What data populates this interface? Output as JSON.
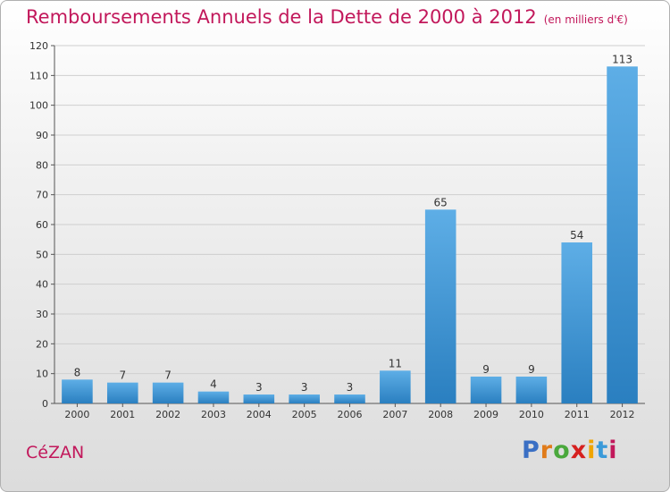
{
  "chart_data": {
    "type": "bar",
    "title": "Remboursements Annuels de la Dette de 2000 à 2012",
    "unit": "(en milliers d'€)",
    "categories": [
      "2000",
      "2001",
      "2002",
      "2003",
      "2004",
      "2005",
      "2006",
      "2007",
      "2008",
      "2009",
      "2010",
      "2011",
      "2012"
    ],
    "values": [
      8,
      7,
      7,
      4,
      3,
      3,
      3,
      11,
      65,
      9,
      9,
      54,
      113
    ],
    "ylim": [
      0,
      120
    ],
    "yticks": [
      0,
      10,
      20,
      30,
      40,
      50,
      60,
      70,
      80,
      90,
      100,
      110,
      120
    ],
    "grid": true,
    "xlabel": "",
    "ylabel": "",
    "bar_color_top": "#5eaee6",
    "bar_color_bottom": "#2a7fc0"
  },
  "footer": {
    "commune": "CéZAN",
    "brand_letters": [
      "P",
      "r",
      "o",
      "x",
      "i",
      "t",
      "i"
    ],
    "brand_colors": [
      "#3a6fc4",
      "#e07b1a",
      "#4aa83c",
      "#d6201f",
      "#f0a500",
      "#3a9ad9",
      "#c2185b"
    ]
  },
  "colors": {
    "title": "#c2185b",
    "grid": "#cfcfcf",
    "axis": "#555555"
  }
}
